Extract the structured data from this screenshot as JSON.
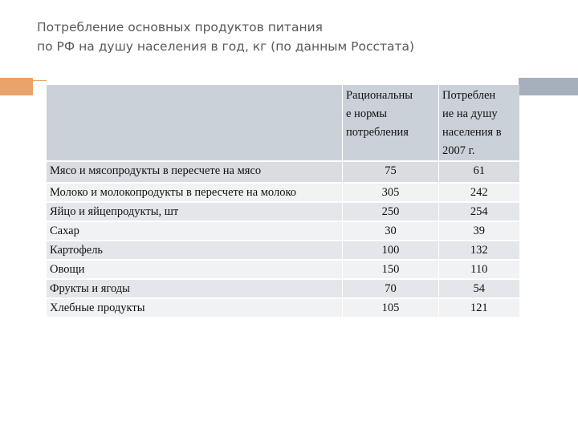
{
  "title": {
    "line1": "Потребление основных продуктов питания",
    "line2": "по РФ на душу населения в год, кг (по данным Росстата)"
  },
  "table": {
    "header": {
      "col2_lines": [
        "Рациональны",
        "е нормы",
        "потребления"
      ],
      "col3_lines": [
        "Потреблен",
        "ие на душу",
        "населения в",
        "2007 г."
      ]
    },
    "rows": [
      {
        "product": "Мясо и мясопродукты в пересчете на мясо",
        "norm": "75",
        "actual": "61"
      },
      {
        "product": "Молоко и молокопродукты в пересчете на молоко",
        "norm": "305",
        "actual": "242"
      },
      {
        "product": "Яйцо и яйцепродукты, шт",
        "norm": "250",
        "actual": "254"
      },
      {
        "product": "Сахар",
        "norm": "30",
        "actual": "39"
      },
      {
        "product": "Картофель",
        "norm": "100",
        "actual": "132"
      },
      {
        "product": "Овощи",
        "norm": "150",
        "actual": "110"
      },
      {
        "product": "Фрукты и ягоды",
        "norm": "70",
        "actual": "54"
      },
      {
        "product": "Хлебные продукты",
        "norm": "105",
        "actual": "121"
      }
    ]
  },
  "colors": {
    "accent_orange": "#e8a26a",
    "accent_gray": "#a6b0bc",
    "header_bg": "#cbd1d8",
    "row_dark": "#e3e6ea",
    "row_light": "#f1f2f4"
  }
}
